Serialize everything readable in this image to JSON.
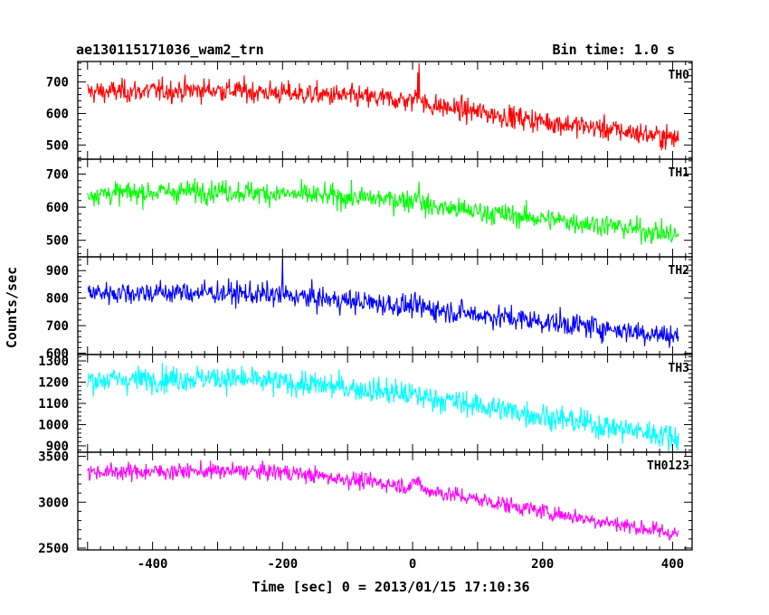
{
  "header": {
    "title": "ae130115171036_wam2_trn",
    "bin_time": "Bin time: 1.0 s"
  },
  "chart_data": {
    "type": "line",
    "title": "ae130115171036_wam2_trn",
    "subtitle": "Bin time: 1.0 s",
    "xlabel": "Time [sec] 0 = 2013/01/15 17:10:36",
    "ylabel": "Counts/sec",
    "xlim": [
      -515,
      430
    ],
    "xticks": [
      -400,
      -200,
      0,
      200,
      400
    ],
    "x_start": -500,
    "x_end": 409,
    "bin": 1.0,
    "grid": false,
    "panels": [
      {
        "name": "TH0",
        "color": "#ff0000",
        "ylim": [
          455,
          765
        ],
        "yticks": [
          500,
          600,
          700
        ],
        "trend": [
          [
            -500,
            668
          ],
          [
            -300,
            675
          ],
          [
            -100,
            655
          ],
          [
            0,
            640
          ],
          [
            5,
            655
          ],
          [
            10,
            680
          ],
          [
            15,
            630
          ],
          [
            200,
            575
          ],
          [
            300,
            550
          ],
          [
            409,
            520
          ]
        ],
        "noise": 30,
        "spikes": [
          [
            10,
            760
          ],
          [
            8,
            730
          ]
        ]
      },
      {
        "name": "TH1",
        "color": "#00ff00",
        "ylim": [
          450,
          745
        ],
        "yticks": [
          500,
          600,
          700
        ],
        "trend": [
          [
            -500,
            640
          ],
          [
            -300,
            650
          ],
          [
            -100,
            630
          ],
          [
            0,
            620
          ],
          [
            10,
            650
          ],
          [
            15,
            605
          ],
          [
            200,
            565
          ],
          [
            300,
            545
          ],
          [
            409,
            515
          ]
        ],
        "noise": 28,
        "spikes": []
      },
      {
        "name": "TH2",
        "color": "#0000ff",
        "ylim": [
          595,
          950
        ],
        "yticks": [
          600,
          700,
          800,
          900
        ],
        "trend": [
          [
            -500,
            820
          ],
          [
            -300,
            820
          ],
          [
            -200,
            810
          ],
          [
            -100,
            790
          ],
          [
            0,
            770
          ],
          [
            100,
            740
          ],
          [
            200,
            715
          ],
          [
            300,
            690
          ],
          [
            409,
            660
          ]
        ],
        "noise": 35,
        "spikes": [
          [
            -200,
            945
          ]
        ]
      },
      {
        "name": "TH3",
        "color": "#00ffff",
        "ylim": [
          870,
          1330
        ],
        "yticks": [
          900,
          1000,
          1100,
          1200,
          1300
        ],
        "trend": [
          [
            -500,
            1210
          ],
          [
            -300,
            1220
          ],
          [
            -100,
            1175
          ],
          [
            0,
            1140
          ],
          [
            100,
            1090
          ],
          [
            200,
            1040
          ],
          [
            300,
            990
          ],
          [
            409,
            940
          ]
        ],
        "noise": 50,
        "spikes": []
      },
      {
        "name": "TH0123",
        "color": "#ff00ff",
        "ylim": [
          2480,
          3545
        ],
        "yticks": [
          2500,
          3000,
          3500
        ],
        "trend": [
          [
            -500,
            3330
          ],
          [
            -300,
            3340
          ],
          [
            -200,
            3330
          ],
          [
            -100,
            3250
          ],
          [
            0,
            3170
          ],
          [
            8,
            3260
          ],
          [
            15,
            3140
          ],
          [
            100,
            3030
          ],
          [
            200,
            2900
          ],
          [
            300,
            2780
          ],
          [
            409,
            2650
          ]
        ],
        "noise": 75,
        "spikes": []
      }
    ]
  }
}
